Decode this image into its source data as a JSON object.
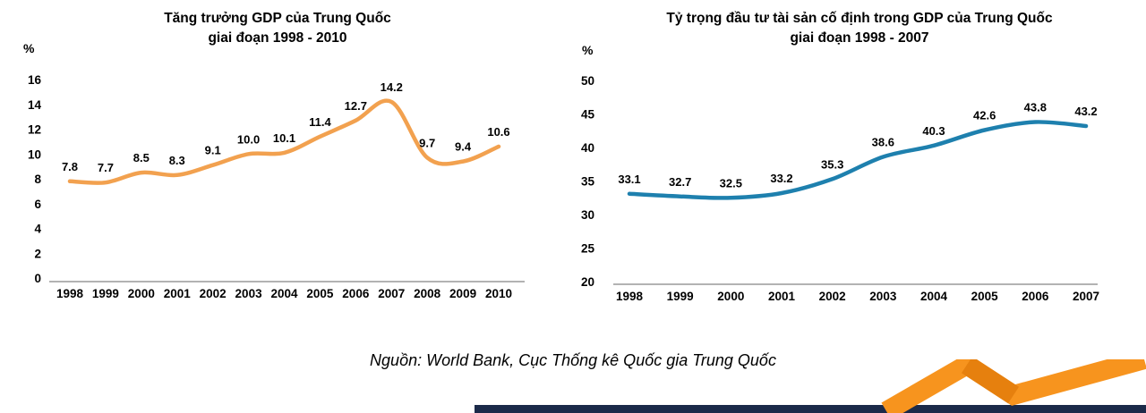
{
  "caption": "Nguồn: World Bank, Cục Thống kê Quốc gia Trung Quốc",
  "colors": {
    "gdp_line": "#F2A14F",
    "investment_line": "#1E80AE",
    "navy_bar": "#1B2A49",
    "logo_orange": "#F7941E",
    "logo_orange_dark": "#E6800E",
    "axis_line": "#9A9A9A"
  },
  "chart_data": [
    {
      "type": "line",
      "title": "Tăng trưởng GDP của Trung Quốc",
      "subtitle": "giai đoạn 1998 - 2010",
      "ylabel": "%",
      "xlabel": "",
      "categories": [
        "1998",
        "1999",
        "2000",
        "2001",
        "2002",
        "2003",
        "2004",
        "2005",
        "2006",
        "2007",
        "2008",
        "2009",
        "2010"
      ],
      "values": [
        7.8,
        7.7,
        8.5,
        8.3,
        9.1,
        10.0,
        10.1,
        11.4,
        12.7,
        14.2,
        9.7,
        9.4,
        10.6
      ],
      "labels": [
        "7.8",
        "7.7",
        "8.5",
        "8.3",
        "9.1",
        "10.0",
        "10.1",
        "11.4",
        "12.7",
        "14.2",
        "9.7",
        "9.4",
        "10.6"
      ],
      "ylim": [
        0,
        16
      ],
      "ytick_step": 2,
      "grid": false,
      "legend": false,
      "line_color": "#F2A14F"
    },
    {
      "type": "line",
      "title": "Tỷ trọng đầu tư tài sản cố định trong GDP của Trung Quốc",
      "subtitle": "giai đoạn 1998 - 2007",
      "ylabel": "%",
      "xlabel": "",
      "categories": [
        "1998",
        "1999",
        "2000",
        "2001",
        "2002",
        "2003",
        "2004",
        "2005",
        "2006",
        "2007"
      ],
      "values": [
        33.1,
        32.7,
        32.5,
        33.2,
        35.3,
        38.6,
        40.3,
        42.6,
        43.8,
        43.2
      ],
      "labels": [
        "33.1",
        "32.7",
        "32.5",
        "33.2",
        "35.3",
        "38.6",
        "40.3",
        "42.6",
        "43.8",
        "43.2"
      ],
      "ylim": [
        20,
        50
      ],
      "ytick_step": 5,
      "grid": false,
      "legend": false,
      "line_color": "#1E80AE"
    }
  ]
}
